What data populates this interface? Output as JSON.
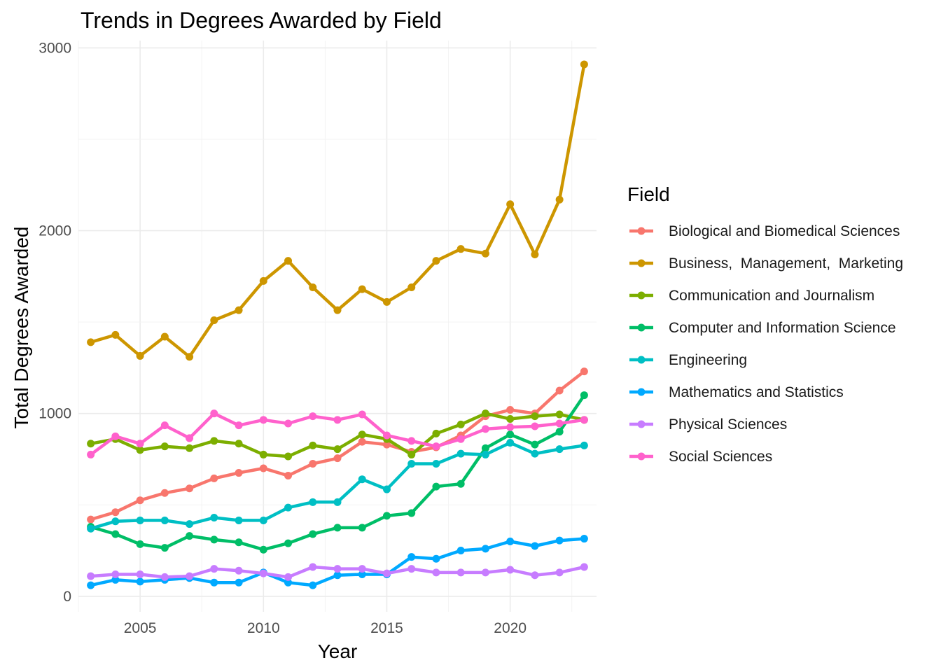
{
  "chart_data": {
    "type": "line",
    "title": "Trends in Degrees Awarded by Field",
    "xlabel": "Year",
    "ylabel": "Total Degrees Awarded",
    "xlim": [
      2002.5,
      2023.5
    ],
    "ylim": [
      -85,
      3040
    ],
    "x_ticks": [
      2005,
      2010,
      2015,
      2020
    ],
    "y_ticks": [
      0,
      1000,
      2000,
      3000
    ],
    "grid": true,
    "legend_title": "Field",
    "legend_position": "right",
    "x": [
      2003,
      2004,
      2005,
      2006,
      2007,
      2008,
      2009,
      2010,
      2011,
      2012,
      2013,
      2014,
      2015,
      2016,
      2017,
      2018,
      2019,
      2020,
      2021,
      2022,
      2023
    ],
    "series": [
      {
        "name": "Biological and Biomedical Sciences",
        "color": "#F8766D",
        "values": [
          420,
          460,
          525,
          565,
          590,
          645,
          675,
          700,
          660,
          725,
          755,
          845,
          830,
          790,
          815,
          880,
          985,
          1020,
          1000,
          1125,
          1230
        ]
      },
      {
        "name": "Business,  Management,  Marketing",
        "color": "#CD9600",
        "values": [
          1390,
          1430,
          1315,
          1420,
          1310,
          1510,
          1565,
          1725,
          1835,
          1690,
          1565,
          1680,
          1610,
          1690,
          1835,
          1900,
          1875,
          2145,
          1870,
          2170,
          2910
        ]
      },
      {
        "name": "Communication and Journalism",
        "color": "#7CAE00",
        "values": [
          835,
          860,
          800,
          820,
          810,
          850,
          835,
          775,
          765,
          825,
          805,
          885,
          860,
          775,
          890,
          940,
          1000,
          970,
          985,
          995,
          965
        ]
      },
      {
        "name": "Computer and Information Science",
        "color": "#00BE67",
        "values": [
          380,
          340,
          285,
          265,
          330,
          310,
          295,
          255,
          290,
          340,
          375,
          375,
          440,
          455,
          600,
          615,
          810,
          885,
          830,
          900,
          1100
        ]
      },
      {
        "name": "Engineering",
        "color": "#00BFC4",
        "values": [
          370,
          410,
          415,
          415,
          395,
          430,
          415,
          415,
          485,
          515,
          515,
          640,
          585,
          725,
          725,
          780,
          775,
          840,
          780,
          805,
          825
        ]
      },
      {
        "name": "Mathematics and Statistics",
        "color": "#00A9FF",
        "values": [
          60,
          90,
          80,
          90,
          100,
          75,
          75,
          130,
          75,
          60,
          115,
          120,
          120,
          215,
          205,
          250,
          260,
          300,
          275,
          305,
          315
        ]
      },
      {
        "name": "Physical Sciences",
        "color": "#C77CFF",
        "values": [
          110,
          120,
          120,
          105,
          110,
          150,
          140,
          125,
          105,
          160,
          150,
          150,
          125,
          150,
          130,
          130,
          130,
          145,
          115,
          130,
          160
        ]
      },
      {
        "name": "Social Sciences",
        "color": "#FF61CC",
        "values": [
          775,
          875,
          835,
          935,
          865,
          1000,
          935,
          965,
          945,
          985,
          965,
          995,
          880,
          850,
          820,
          860,
          915,
          925,
          930,
          945,
          965
        ]
      }
    ]
  }
}
